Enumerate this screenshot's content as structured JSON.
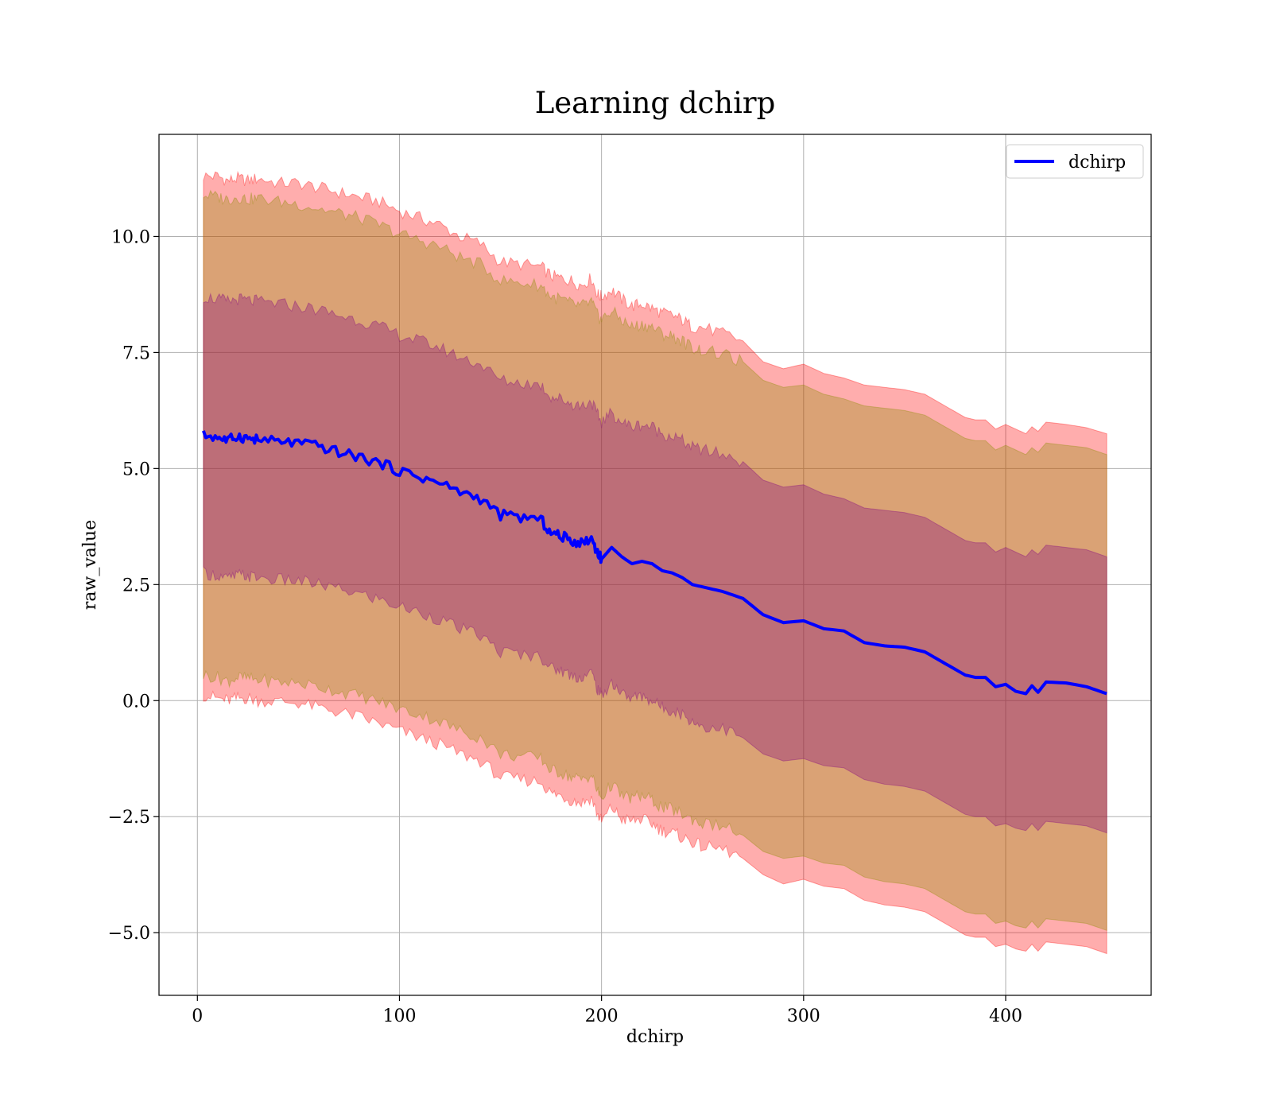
{
  "chart_data": {
    "type": "line",
    "title": "Learning dchirp",
    "xlabel": "dchirp",
    "ylabel": "raw_value",
    "xlim": [
      -19,
      472
    ],
    "ylim": [
      -6.35,
      12.2
    ],
    "xticks": [
      0,
      100,
      200,
      300,
      400
    ],
    "yticks": [
      -5.0,
      -2.5,
      0.0,
      2.5,
      5.0,
      7.5,
      10.0
    ],
    "xtick_labels": [
      "0",
      "100",
      "200",
      "300",
      "400"
    ],
    "ytick_labels": [
      "−5.0",
      "−2.5",
      "0.0",
      "2.5",
      "5.0",
      "7.5",
      "10.0"
    ],
    "grid": true,
    "legend": {
      "position": "top-right",
      "entries": [
        "dchirp"
      ]
    },
    "colors": {
      "line": "#0000ff",
      "band_outer": "#ff0000",
      "band_middle": "#8b8b00",
      "band_inner": "#800080"
    },
    "band_alphas": [
      0.32,
      0.32,
      0.32
    ],
    "x": [
      3,
      10,
      15,
      20,
      25,
      30,
      40,
      50,
      60,
      70,
      80,
      90,
      100,
      110,
      120,
      130,
      140,
      150,
      160,
      170,
      175,
      180,
      185,
      190,
      195,
      198,
      200,
      205,
      210,
      215,
      220,
      225,
      230,
      235,
      240,
      245,
      250,
      260,
      270,
      280,
      290,
      300,
      310,
      320,
      330,
      340,
      350,
      360,
      370,
      380,
      385,
      390,
      395,
      400,
      405,
      410,
      413,
      416,
      420,
      430,
      440,
      450
    ],
    "series": [
      {
        "name": "dchirp",
        "values": [
          5.72,
          5.68,
          5.6,
          5.7,
          5.65,
          5.62,
          5.58,
          5.55,
          5.48,
          5.35,
          5.25,
          5.12,
          4.95,
          4.82,
          4.68,
          4.5,
          4.35,
          4.0,
          3.95,
          3.9,
          3.6,
          3.55,
          3.45,
          3.4,
          3.5,
          3.2,
          3.05,
          3.3,
          3.1,
          2.95,
          3.0,
          2.95,
          2.8,
          2.75,
          2.65,
          2.5,
          2.45,
          2.35,
          2.2,
          1.85,
          1.68,
          1.72,
          1.55,
          1.5,
          1.25,
          1.18,
          1.15,
          1.05,
          0.8,
          0.55,
          0.5,
          0.5,
          0.3,
          0.35,
          0.2,
          0.15,
          0.32,
          0.18,
          0.4,
          0.38,
          0.3,
          0.15
        ]
      }
    ],
    "bands": [
      {
        "upper": [
          11.3,
          11.3,
          11.2,
          11.25,
          11.2,
          11.25,
          11.15,
          11.15,
          11.05,
          10.95,
          10.85,
          10.75,
          10.55,
          10.4,
          10.25,
          10.0,
          9.85,
          9.45,
          9.4,
          9.35,
          9.15,
          9.1,
          9.05,
          8.95,
          9.1,
          8.75,
          8.7,
          8.85,
          8.65,
          8.5,
          8.55,
          8.45,
          8.35,
          8.3,
          8.2,
          8.05,
          8.05,
          7.9,
          7.75,
          7.3,
          7.15,
          7.25,
          7.05,
          6.95,
          6.8,
          6.75,
          6.7,
          6.6,
          6.35,
          6.1,
          6.05,
          6.05,
          5.85,
          5.95,
          5.85,
          5.75,
          5.9,
          5.8,
          6.0,
          5.95,
          5.88,
          5.75
        ],
        "lower": [
          0.12,
          0.05,
          0.0,
          0.05,
          0.05,
          0.0,
          -0.02,
          -0.05,
          -0.15,
          -0.25,
          -0.35,
          -0.5,
          -0.65,
          -0.8,
          -0.95,
          -1.15,
          -1.3,
          -1.65,
          -1.7,
          -1.75,
          -2.0,
          -2.05,
          -2.15,
          -2.2,
          -2.1,
          -2.45,
          -2.6,
          -2.3,
          -2.55,
          -2.6,
          -2.55,
          -2.65,
          -2.8,
          -2.85,
          -2.95,
          -3.05,
          -3.15,
          -3.2,
          -3.4,
          -3.75,
          -3.95,
          -3.85,
          -4.0,
          -4.05,
          -4.3,
          -4.4,
          -4.45,
          -4.55,
          -4.8,
          -5.05,
          -5.1,
          -5.1,
          -5.3,
          -5.25,
          -5.35,
          -5.4,
          -5.25,
          -5.4,
          -5.2,
          -5.25,
          -5.3,
          -5.45
        ]
      },
      {
        "upper": [
          10.9,
          10.85,
          10.8,
          10.85,
          10.8,
          10.82,
          10.75,
          10.7,
          10.6,
          10.5,
          10.4,
          10.25,
          10.05,
          9.92,
          9.78,
          9.55,
          9.4,
          9.05,
          9.0,
          8.95,
          8.7,
          8.65,
          8.55,
          8.5,
          8.6,
          8.3,
          8.2,
          8.4,
          8.2,
          8.05,
          8.1,
          8.05,
          7.9,
          7.85,
          7.75,
          7.6,
          7.55,
          7.45,
          7.3,
          6.9,
          6.75,
          6.8,
          6.6,
          6.5,
          6.35,
          6.3,
          6.25,
          6.15,
          5.9,
          5.65,
          5.6,
          5.6,
          5.4,
          5.5,
          5.4,
          5.3,
          5.45,
          5.35,
          5.55,
          5.5,
          5.45,
          5.3
        ],
        "lower": [
          0.55,
          0.5,
          0.42,
          0.5,
          0.48,
          0.45,
          0.4,
          0.38,
          0.3,
          0.2,
          0.1,
          -0.02,
          -0.18,
          -0.3,
          -0.45,
          -0.65,
          -0.8,
          -1.15,
          -1.2,
          -1.25,
          -1.5,
          -1.55,
          -1.65,
          -1.7,
          -1.6,
          -1.95,
          -2.1,
          -1.8,
          -2.05,
          -2.1,
          -2.05,
          -2.15,
          -2.3,
          -2.35,
          -2.45,
          -2.55,
          -2.65,
          -2.7,
          -2.9,
          -3.25,
          -3.4,
          -3.35,
          -3.5,
          -3.55,
          -3.8,
          -3.9,
          -3.95,
          -4.05,
          -4.3,
          -4.55,
          -4.6,
          -4.6,
          -4.8,
          -4.75,
          -4.85,
          -4.9,
          -4.75,
          -4.9,
          -4.7,
          -4.75,
          -4.8,
          -4.95
        ]
      },
      {
        "upper": [
          8.7,
          8.65,
          8.6,
          8.65,
          8.62,
          8.6,
          8.55,
          8.5,
          8.42,
          8.3,
          8.2,
          8.05,
          7.88,
          7.75,
          7.6,
          7.4,
          7.25,
          6.9,
          6.85,
          6.8,
          6.55,
          6.5,
          6.4,
          6.35,
          6.45,
          6.15,
          6.0,
          6.2,
          6.0,
          5.9,
          5.95,
          5.9,
          5.75,
          5.7,
          5.6,
          5.45,
          5.4,
          5.3,
          5.15,
          4.75,
          4.6,
          4.65,
          4.45,
          4.35,
          4.15,
          4.1,
          4.05,
          3.95,
          3.7,
          3.45,
          3.4,
          3.4,
          3.2,
          3.3,
          3.2,
          3.1,
          3.25,
          3.15,
          3.35,
          3.3,
          3.25,
          3.1
        ],
        "lower": [
          2.75,
          2.7,
          2.62,
          2.7,
          2.68,
          2.65,
          2.6,
          2.58,
          2.5,
          2.4,
          2.3,
          2.18,
          2.02,
          1.9,
          1.75,
          1.55,
          1.4,
          1.05,
          1.0,
          0.95,
          0.7,
          0.65,
          0.55,
          0.5,
          0.6,
          0.25,
          0.1,
          0.4,
          0.15,
          0.05,
          0.1,
          0.0,
          -0.15,
          -0.2,
          -0.3,
          -0.45,
          -0.55,
          -0.6,
          -0.8,
          -1.15,
          -1.3,
          -1.25,
          -1.4,
          -1.45,
          -1.7,
          -1.8,
          -1.85,
          -1.95,
          -2.2,
          -2.45,
          -2.5,
          -2.5,
          -2.7,
          -2.65,
          -2.75,
          -2.8,
          -2.65,
          -2.8,
          -2.6,
          -2.65,
          -2.7,
          -2.85
        ]
      }
    ]
  }
}
